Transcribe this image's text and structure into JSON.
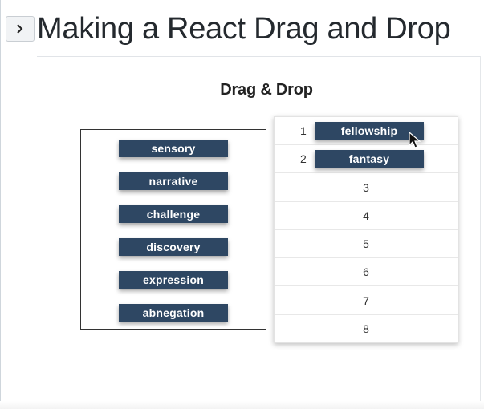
{
  "header": {
    "title": "Making a React Drag and Drop",
    "expand_icon": "chevron-right-icon"
  },
  "demo": {
    "title": "Drag & Drop"
  },
  "source_items": [
    {
      "label": "sensory"
    },
    {
      "label": "narrative"
    },
    {
      "label": "challenge"
    },
    {
      "label": "discovery"
    },
    {
      "label": "expression"
    },
    {
      "label": "abnegation"
    }
  ],
  "target_slots": [
    {
      "number": "1",
      "item": "fellowship"
    },
    {
      "number": "2",
      "item": "fantasy"
    },
    {
      "number": "3",
      "item": ""
    },
    {
      "number": "4",
      "item": ""
    },
    {
      "number": "5",
      "item": ""
    },
    {
      "number": "6",
      "item": ""
    },
    {
      "number": "7",
      "item": ""
    },
    {
      "number": "8",
      "item": ""
    }
  ],
  "colors": {
    "chip_bg": "#2e4763",
    "chip_text": "#ffffff"
  },
  "cursor": {
    "icon": "mouse-pointer-icon"
  }
}
